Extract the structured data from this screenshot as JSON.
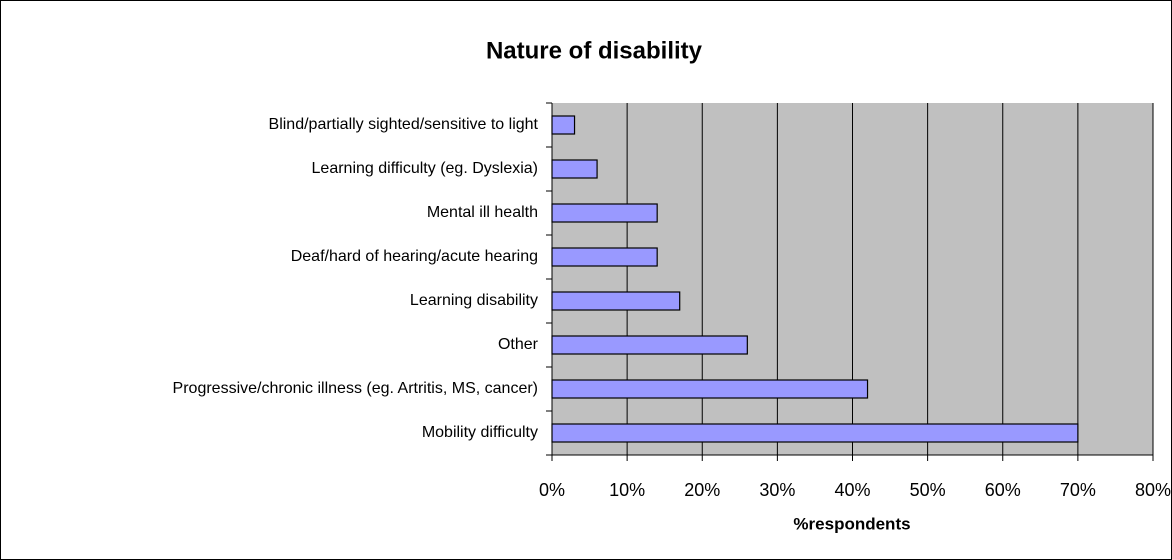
{
  "chart_data": {
    "type": "bar",
    "orientation": "horizontal",
    "title": "Nature of disability",
    "categories": [
      "Blind/partially sighted/sensitive to light",
      "Learning difficulty (eg. Dyslexia)",
      "Mental ill health",
      "Deaf/hard of hearing/acute hearing",
      "Learning disability",
      "Other",
      "Progressive/chronic illness (eg. Artritis, MS, cancer)",
      "Mobility difficulty"
    ],
    "values": [
      3,
      6,
      14,
      14,
      17,
      26,
      42,
      70
    ],
    "color": "#9999ff",
    "plot_background": "#c0c0c0",
    "xlabel": "%respondents",
    "xlim": [
      0,
      80
    ],
    "xticks": [
      {
        "value": 0,
        "label": "0%"
      },
      {
        "value": 10,
        "label": "10%"
      },
      {
        "value": 20,
        "label": "20%"
      },
      {
        "value": 30,
        "label": "30%"
      },
      {
        "value": 40,
        "label": "40%"
      },
      {
        "value": 50,
        "label": "50%"
      },
      {
        "value": 60,
        "label": "60%"
      },
      {
        "value": 70,
        "label": "70%"
      },
      {
        "value": 80,
        "label": "80%"
      }
    ],
    "grid": true
  }
}
